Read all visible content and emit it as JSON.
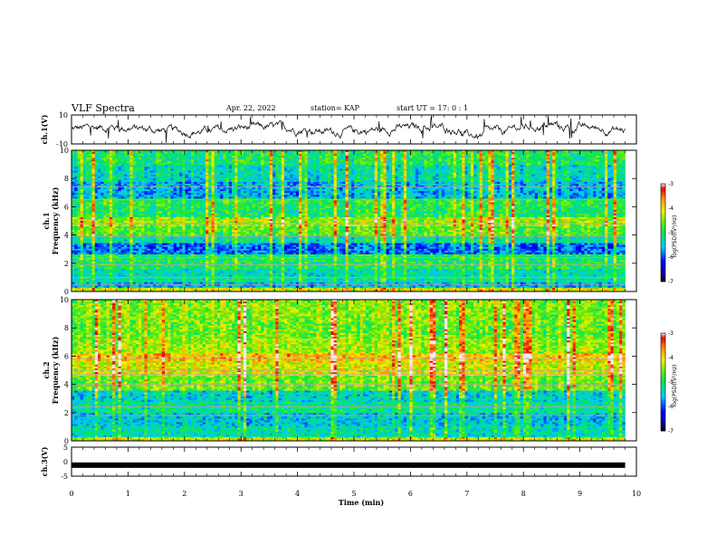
{
  "header": {
    "title": "VLF Spectra",
    "date": "Apr. 22, 2022",
    "station": "station= KAP",
    "start": "start  UT =   17: 0  : 1"
  },
  "chart_data": [
    {
      "type": "line",
      "id": "ch1",
      "ylabel": "ch.1(V)",
      "ylim": [
        -10,
        10
      ],
      "yticks": [
        "10",
        "-10"
      ],
      "xlim": [
        0,
        10
      ],
      "x_end": 9.8,
      "color": "#000000"
    },
    {
      "type": "heatmap",
      "id": "spec1",
      "ylabel": "ch.1\nFrequency  (kHz)",
      "ylabel_lines": [
        "ch.1",
        "Frequency  (kHz)"
      ],
      "ylim": [
        0,
        10
      ],
      "yticks": [
        "0",
        "2",
        "4",
        "6",
        "8",
        "10"
      ],
      "xlim": [
        0,
        10
      ],
      "x_end": 9.8,
      "colorbar": {
        "label": "log(PSD)(V²/Hz)",
        "range": [
          -7,
          -3
        ],
        "ticks": [
          "-3",
          "-4",
          "-5",
          "-6",
          "-7"
        ]
      },
      "bands": [
        {
          "f": [
            0,
            0.2
          ],
          "level": -4.2
        },
        {
          "f": [
            0.2,
            0.6
          ],
          "level": -5.6
        },
        {
          "f": [
            0.6,
            1.1
          ],
          "level": -5.2
        },
        {
          "f": [
            1.1,
            1.6
          ],
          "level": -5.3
        },
        {
          "f": [
            1.6,
            2.6
          ],
          "level": -5.0
        },
        {
          "f": [
            2.6,
            3.4
          ],
          "level": -5.9
        },
        {
          "f": [
            3.4,
            4.0
          ],
          "level": -5.2
        },
        {
          "f": [
            4.0,
            4.6
          ],
          "level": -4.7
        },
        {
          "f": [
            4.6,
            5.2
          ],
          "level": -4.4
        },
        {
          "f": [
            5.2,
            6.0
          ],
          "level": -5.0
        },
        {
          "f": [
            6.0,
            6.6
          ],
          "level": -4.9
        },
        {
          "f": [
            6.6,
            7.8
          ],
          "level": -5.6
        },
        {
          "f": [
            7.8,
            9.0
          ],
          "level": -5.3
        },
        {
          "f": [
            9.0,
            10.0
          ],
          "level": -5.0
        }
      ],
      "lines_khz": [
        0.5,
        1.0,
        1.9,
        2.4,
        3.9,
        4.8,
        5.1,
        6.5,
        7.4
      ]
    },
    {
      "type": "heatmap",
      "id": "spec2",
      "ylabel": "ch.2\nFrequency  (kHz)",
      "ylabel_lines": [
        "ch.2",
        "Frequency  (kHz)"
      ],
      "ylim": [
        0,
        10
      ],
      "yticks": [
        "0",
        "2",
        "4",
        "6",
        "8",
        "10"
      ],
      "xlim": [
        0,
        10
      ],
      "x_end": 9.8,
      "colorbar": {
        "label": "log(PSD)(V²/Hz)",
        "range": [
          -7,
          -3
        ],
        "ticks": [
          "-3",
          "-4",
          "-5",
          "-6",
          "-7"
        ]
      },
      "bands": [
        {
          "f": [
            0,
            0.2
          ],
          "level": -4.3
        },
        {
          "f": [
            0.2,
            1.0
          ],
          "level": -5.3
        },
        {
          "f": [
            1.0,
            2.0
          ],
          "level": -5.5
        },
        {
          "f": [
            2.0,
            2.8
          ],
          "level": -5.2
        },
        {
          "f": [
            2.8,
            3.6
          ],
          "level": -5.4
        },
        {
          "f": [
            3.6,
            4.6
          ],
          "level": -4.6
        },
        {
          "f": [
            4.6,
            5.6
          ],
          "level": -4.2
        },
        {
          "f": [
            5.6,
            6.2
          ],
          "level": -3.9
        },
        {
          "f": [
            6.2,
            7.2
          ],
          "level": -4.4
        },
        {
          "f": [
            7.2,
            8.4
          ],
          "level": -4.6
        },
        {
          "f": [
            8.4,
            10.0
          ],
          "level": -4.5
        }
      ],
      "lines_khz": [
        1.8,
        2.4,
        4.0,
        4.7,
        5.0,
        5.8
      ]
    },
    {
      "type": "line",
      "id": "ch3",
      "ylabel": "ch.3(V)",
      "ylim": [
        -5,
        5
      ],
      "yticks": [
        "5",
        "0",
        "-5"
      ],
      "xlim": [
        0,
        10
      ],
      "x_end": 9.8,
      "level": -1.2,
      "color": "#000000"
    }
  ],
  "xaxis": {
    "label": "Time  (min)",
    "ticks": [
      "0",
      "1",
      "2",
      "3",
      "4",
      "5",
      "6",
      "7",
      "8",
      "9",
      "10"
    ]
  }
}
